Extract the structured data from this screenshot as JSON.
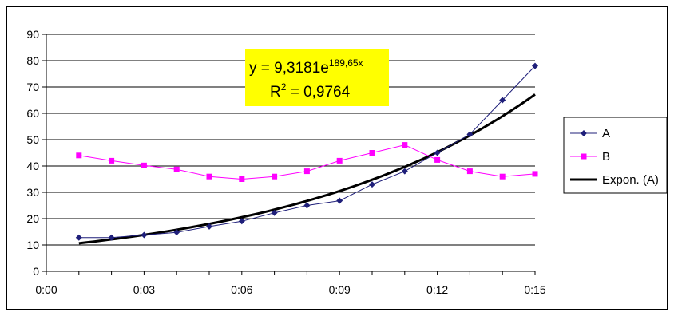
{
  "chart_data": {
    "type": "line",
    "x_labels": [
      "0:00",
      "0:03",
      "0:06",
      "0:09",
      "0:12",
      "0:15"
    ],
    "x": [
      "0:01",
      "0:02",
      "0:03",
      "0:04",
      "0:05",
      "0:06",
      "0:07",
      "0:08",
      "0:09",
      "0:10",
      "0:11",
      "0:12",
      "0:13",
      "0:14",
      "0:15"
    ],
    "xlim": [
      "0:00",
      "0:15"
    ],
    "ylim": [
      0,
      90
    ],
    "yticks": [
      0,
      10,
      20,
      30,
      40,
      50,
      60,
      70,
      80,
      90
    ],
    "grid": true,
    "legend_position": "right",
    "series": [
      {
        "name": "A",
        "color": "#1F1F7A",
        "marker": "diamond",
        "values": [
          12.8,
          12.8,
          13.8,
          14.8,
          17,
          19,
          22.2,
          25,
          26.8,
          33,
          38,
          45,
          52,
          65,
          78
        ]
      },
      {
        "name": "B",
        "color": "#FF00FF",
        "marker": "square",
        "values": [
          44,
          42,
          40.2,
          38.7,
          36,
          35,
          36,
          38,
          42,
          45,
          48,
          42.3,
          38,
          36,
          37
        ]
      }
    ],
    "trendline": {
      "name": "Expon. (A)",
      "color": "#000000",
      "type": "exponential",
      "coefficient": 9.3181,
      "rate": 189.65
    },
    "annotation": {
      "equation_prefix": "y = 9,3181e",
      "equation_exponent": "189,65x",
      "r2_prefix": "R",
      "r2_exponent": "2",
      "r2_suffix": " = 0,9764",
      "background": "#FFFF00"
    }
  }
}
